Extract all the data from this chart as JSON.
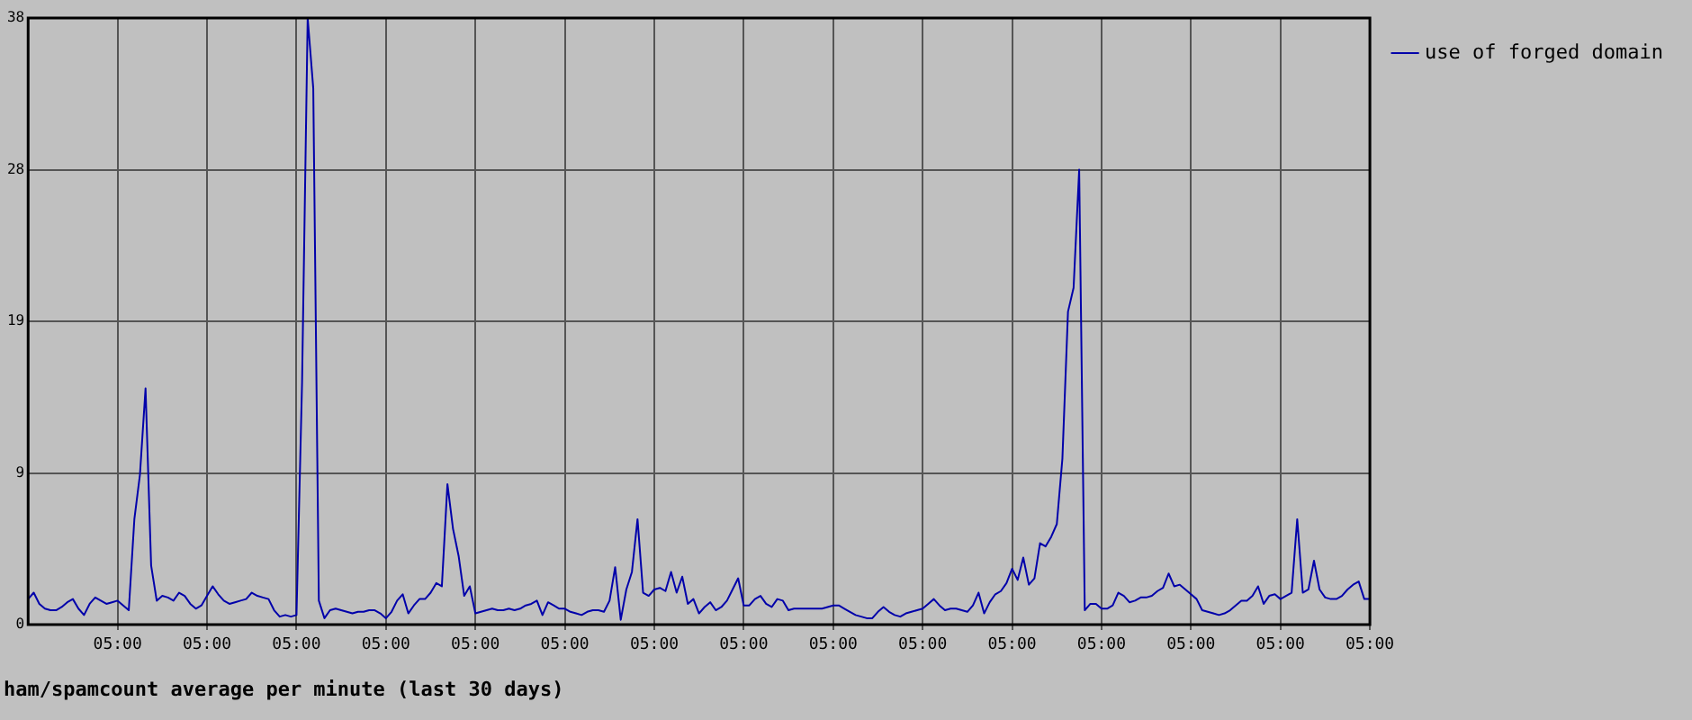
{
  "chart_data": {
    "type": "line",
    "title": "ham/spamcount average per minute (last 30 days)",
    "categories": [
      null,
      null,
      null,
      null,
      null,
      null,
      null,
      null,
      null,
      null,
      null,
      null,
      null,
      null,
      null,
      null,
      "05:00",
      null,
      null,
      null,
      null,
      null,
      null,
      null,
      null,
      null,
      null,
      null,
      null,
      null,
      null,
      null,
      "05:00",
      null,
      null,
      null,
      null,
      null,
      null,
      null,
      null,
      null,
      null,
      null,
      null,
      null,
      null,
      null,
      "05:00",
      null,
      null,
      null,
      null,
      null,
      null,
      null,
      null,
      null,
      null,
      null,
      null,
      null,
      null,
      null,
      "05:00",
      null,
      null,
      null,
      null,
      null,
      null,
      null,
      null,
      null,
      null,
      null,
      null,
      null,
      null,
      null,
      "05:00",
      null,
      null,
      null,
      null,
      null,
      null,
      null,
      null,
      null,
      null,
      null,
      null,
      null,
      null,
      null,
      "05:00",
      null,
      null,
      null,
      null,
      null,
      null,
      null,
      null,
      null,
      null,
      null,
      null,
      null,
      null,
      null,
      "05:00",
      null,
      null,
      null,
      null,
      null,
      null,
      null,
      null,
      null,
      null,
      null,
      null,
      null,
      null,
      null,
      "05:00",
      null,
      null,
      null,
      null,
      null,
      null,
      null,
      null,
      null,
      null,
      null,
      null,
      null,
      null,
      null,
      "05:00",
      null,
      null,
      null,
      null,
      null,
      null,
      null,
      null,
      null,
      null,
      null,
      null,
      null,
      null,
      null,
      "05:00",
      null,
      null,
      null,
      null,
      null,
      null,
      null,
      null,
      null,
      null,
      null,
      null,
      null,
      null,
      null,
      "05:00",
      null,
      null,
      null,
      null,
      null,
      null,
      null,
      null,
      null,
      null,
      null,
      null,
      null,
      null,
      null,
      "05:00",
      null,
      null,
      null,
      null,
      null,
      null,
      null,
      null,
      null,
      null,
      null,
      null,
      null,
      null,
      null,
      "05:00",
      null,
      null,
      null,
      null,
      null,
      null,
      null,
      null,
      null,
      null,
      null,
      null,
      null,
      null,
      null,
      "05:00",
      null,
      null,
      null,
      null,
      null,
      null,
      null,
      null,
      null,
      null,
      null,
      null,
      null,
      null,
      null,
      "05:00"
    ],
    "ylim": [
      0,
      38
    ],
    "yticks": [
      0,
      {
        "value": 9.5,
        "label": "9"
      },
      19,
      {
        "value": 28.5,
        "label": "28"
      },
      38
    ],
    "grid": true,
    "legend": "right",
    "marker": "none",
    "line_style": "solid",
    "series": [
      {
        "name": "use of forged domain",
        "color": "#0000aa",
        "values": [
          1.6,
          2.0,
          1.3,
          1.0,
          0.9,
          0.9,
          1.1,
          1.4,
          1.6,
          1.0,
          0.6,
          1.3,
          1.7,
          1.5,
          1.3,
          1.4,
          1.5,
          1.2,
          0.9,
          6.6,
          9.4,
          14.8,
          3.7,
          1.5,
          1.8,
          1.7,
          1.5,
          2.0,
          1.8,
          1.3,
          1.0,
          1.2,
          1.8,
          2.4,
          1.9,
          1.5,
          1.3,
          1.4,
          1.5,
          1.6,
          2.0,
          1.8,
          1.7,
          1.6,
          0.9,
          0.5,
          0.6,
          0.5,
          0.6,
          15.2,
          38,
          33.6,
          1.5,
          0.4,
          0.9,
          1.0,
          0.9,
          0.8,
          0.7,
          0.8,
          0.8,
          0.9,
          0.9,
          0.7,
          0.4,
          0.8,
          1.5,
          1.9,
          0.7,
          1.2,
          1.6,
          1.6,
          2.0,
          2.6,
          2.4,
          8.8,
          6.0,
          4.3,
          1.8,
          2.4,
          0.7,
          0.8,
          0.9,
          1.0,
          0.9,
          0.9,
          1.0,
          0.9,
          1.0,
          1.2,
          1.3,
          1.5,
          0.6,
          1.4,
          1.2,
          1.0,
          1.0,
          0.8,
          0.7,
          0.6,
          0.8,
          0.9,
          0.9,
          0.8,
          1.5,
          3.6,
          0.3,
          2.2,
          3.3,
          6.6,
          2.0,
          1.8,
          2.2,
          2.3,
          2.1,
          3.3,
          2.0,
          3.0,
          1.3,
          1.6,
          0.7,
          1.1,
          1.4,
          0.9,
          1.1,
          1.5,
          2.2,
          2.9,
          1.2,
          1.2,
          1.6,
          1.8,
          1.3,
          1.1,
          1.6,
          1.5,
          0.9,
          1.0,
          1.0,
          1.0,
          1.0,
          1.0,
          1.0,
          1.1,
          1.2,
          1.2,
          1.0,
          0.8,
          0.6,
          0.5,
          0.4,
          0.4,
          0.8,
          1.1,
          0.8,
          0.6,
          0.5,
          0.7,
          0.8,
          0.9,
          1.0,
          1.3,
          1.6,
          1.2,
          0.9,
          1.0,
          1.0,
          0.9,
          0.8,
          1.2,
          2.0,
          0.7,
          1.4,
          1.9,
          2.1,
          2.6,
          3.5,
          2.8,
          4.2,
          2.5,
          2.9,
          5.1,
          4.9,
          5.5,
          6.3,
          10.4,
          19.6,
          21.1,
          28.5,
          0.9,
          1.3,
          1.3,
          1.0,
          1.0,
          1.2,
          2.0,
          1.8,
          1.4,
          1.5,
          1.7,
          1.7,
          1.8,
          2.1,
          2.3,
          3.2,
          2.4,
          2.5,
          2.2,
          1.9,
          1.6,
          0.9,
          0.8,
          0.7,
          0.6,
          0.7,
          0.9,
          1.2,
          1.5,
          1.5,
          1.8,
          2.4,
          1.3,
          1.8,
          1.9,
          1.6,
          1.8,
          2.0,
          6.6,
          2.0,
          2.2,
          4.0,
          2.2,
          1.7,
          1.6,
          1.6,
          1.8,
          2.2,
          2.5,
          2.7,
          1.6,
          1.6
        ]
      }
    ]
  }
}
